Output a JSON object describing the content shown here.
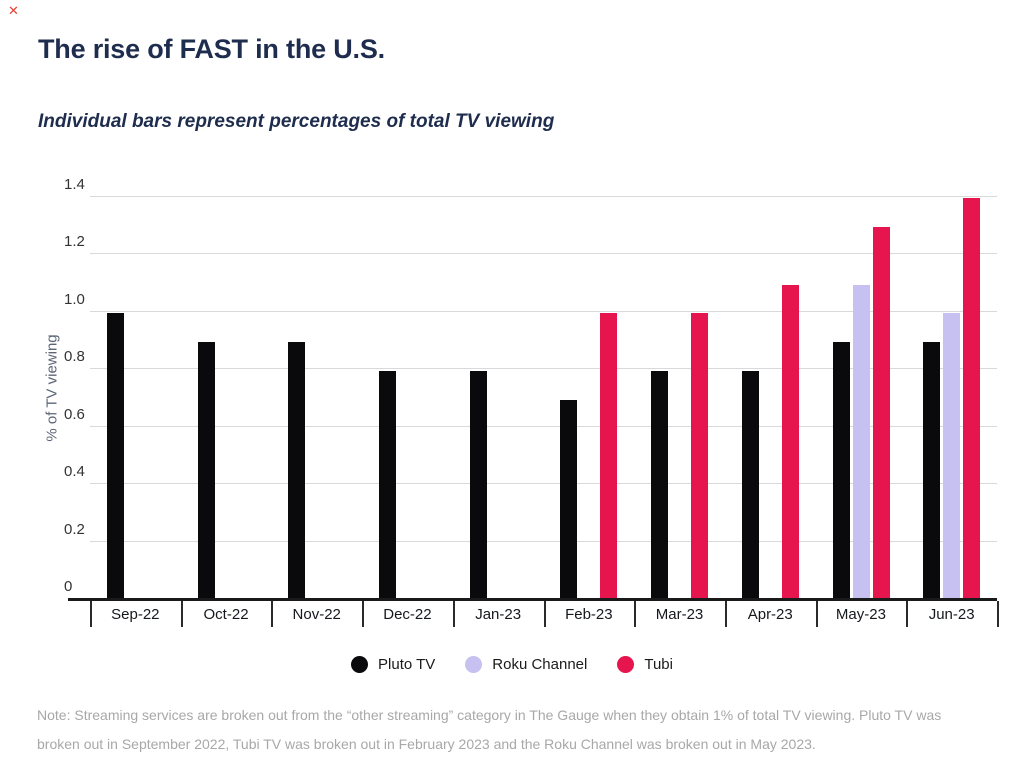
{
  "close_mark": "✕",
  "header": {
    "title": "The rise of FAST in the U.S.",
    "subtitle": "Individual bars represent percentages of total TV viewing"
  },
  "chart_data": {
    "type": "bar",
    "title": "The rise of FAST in the U.S.",
    "subtitle": "Individual bars represent percentages of total TV viewing",
    "ylabel": "% of TV viewing",
    "xlabel": "",
    "ylim": [
      0,
      1.4
    ],
    "yticks": [
      "0",
      "0.2",
      "0.4",
      "0.6",
      "0.8",
      "1.0",
      "1.2",
      "1.4"
    ],
    "grid": "horizontal",
    "legend_position": "bottom",
    "categories": [
      "Sep-22",
      "Oct-22",
      "Nov-22",
      "Dec-22",
      "Jan-23",
      "Feb-23",
      "Mar-23",
      "Apr-23",
      "May-23",
      "Jun-23"
    ],
    "series": [
      {
        "name": "Pluto TV",
        "color": "#0a0a0c",
        "values": [
          0.99,
          0.89,
          0.89,
          0.79,
          0.79,
          0.69,
          0.79,
          0.79,
          0.89,
          0.89
        ]
      },
      {
        "name": "Roku Channel",
        "color": "#c6c1f0",
        "values": [
          null,
          null,
          null,
          null,
          null,
          null,
          null,
          null,
          1.09,
          0.99
        ]
      },
      {
        "name": "Tubi",
        "color": "#e6154d",
        "values": [
          null,
          null,
          null,
          null,
          null,
          0.99,
          0.99,
          1.09,
          1.29,
          1.39
        ]
      }
    ]
  },
  "note": "Note: Streaming services are broken out from the “other streaming” category in The Gauge when they obtain 1% of total TV viewing. Pluto TV was broken out in September 2022, Tubi TV was broken out in February 2023 and the Roku Channel was broken out in May 2023."
}
